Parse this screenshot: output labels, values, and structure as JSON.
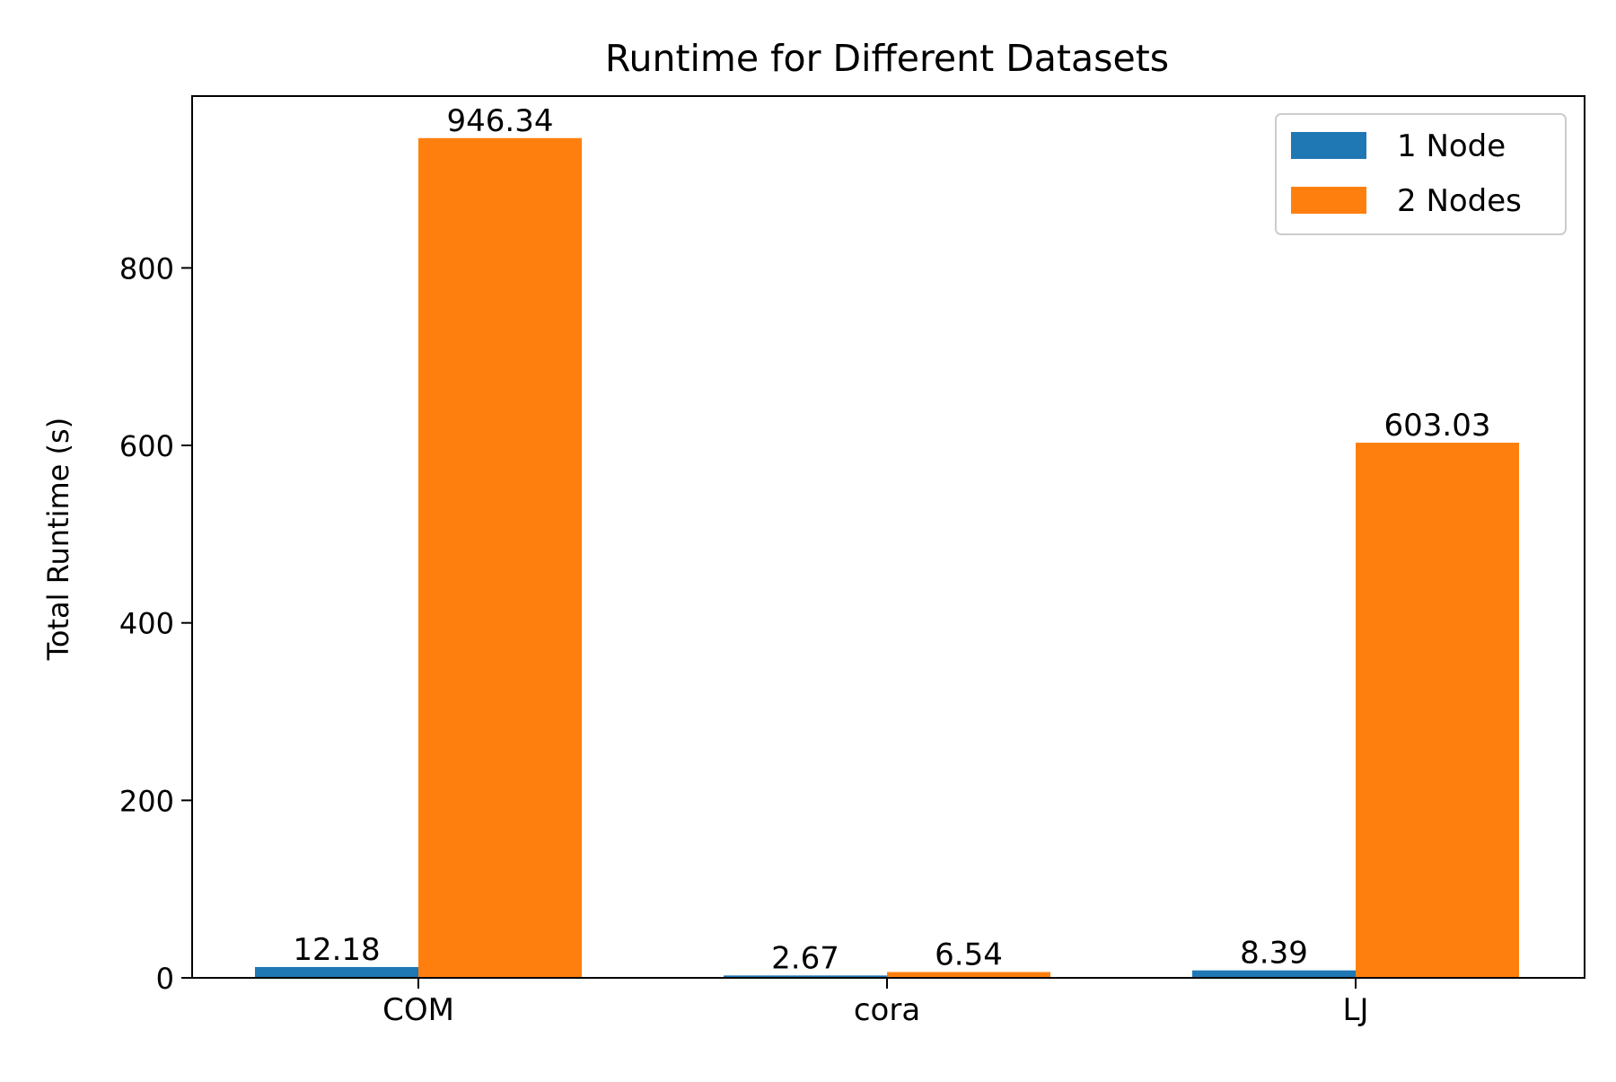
{
  "chart_data": {
    "type": "bar",
    "title": "Runtime for Different Datasets",
    "xlabel": "",
    "ylabel": "Total Runtime (s)",
    "categories": [
      "COM",
      "cora",
      "LJ"
    ],
    "series": [
      {
        "name": "1 Node",
        "color": "#1f77b4",
        "values": [
          12.18,
          2.67,
          8.39
        ],
        "labels": [
          "12.18",
          "2.67",
          "8.39"
        ]
      },
      {
        "name": "2 Nodes",
        "color": "#ff7f0e",
        "values": [
          946.34,
          6.54,
          603.03
        ],
        "labels": [
          "946.34",
          "6.54",
          "603.03"
        ]
      }
    ],
    "ylim": [
      0,
      993.66
    ],
    "yticks": [
      0,
      200,
      400,
      600,
      800
    ],
    "ytick_labels": [
      "0",
      "200",
      "400",
      "600",
      "800"
    ],
    "grid": false,
    "legend_position": "top-right"
  }
}
